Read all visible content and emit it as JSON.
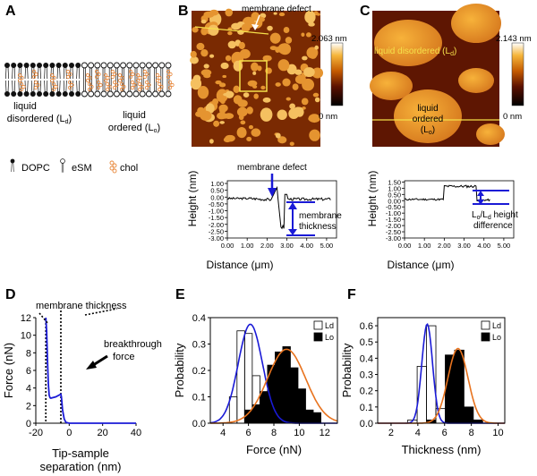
{
  "panels": {
    "A": {
      "letter": "A",
      "ld_label_1": "liquid",
      "ld_label_2": "disordered (L",
      "ld_sub": "d",
      "lo_label_1": "liquid",
      "lo_label_2": "ordered (L",
      "lo_sub": "o",
      "close_paren": ")",
      "legend": [
        "DOPC",
        "eSM",
        "chol"
      ],
      "colors": {
        "chol": "#e8873a",
        "lipid": "#111111"
      }
    },
    "B": {
      "letter": "B",
      "annotation": "membrane defect",
      "scale_max": "2.063 nm",
      "scale_min": "0 nm",
      "profile": {
        "ylabel": "Height (nm)",
        "xlabel": "Distance (μm)",
        "yticks": [
          "1.00",
          "0.50",
          "0.00",
          "-0.50",
          "-1.00",
          "-1.50",
          "-2.00",
          "-2.50",
          "-3.00"
        ],
        "xticks": [
          "0.00",
          "1.00",
          "2.00",
          "3.00",
          "4.00",
          "5.00"
        ],
        "defect_label": "membrane defect",
        "thickness_label_1": "membrane",
        "thickness_label_2": "thickness"
      }
    },
    "C": {
      "letter": "C",
      "scale_max": "2.143 nm",
      "scale_min": "0 nm",
      "ld_label": "liquid disordered (L",
      "ld_sub": "d",
      "lo_label_1": "liquid",
      "lo_label_2": "ordered",
      "lo_label_3": "(L",
      "lo_sub": "o",
      "close_paren": ")",
      "profile": {
        "ylabel": "Height (nm)",
        "xlabel": "Distance (μm)",
        "yticks": [
          "1.50",
          "1.00",
          "0.50",
          "0.00",
          "-0.50",
          "-1.00",
          "-1.50",
          "-2.00",
          "-2.50",
          "-3.00"
        ],
        "xticks": [
          "0.00",
          "1.00",
          "2.00",
          "3.00",
          "4.00",
          "5.00"
        ],
        "diff_label_1a": "L",
        "diff_sub_o": "o",
        "diff_label_1b": "/L",
        "diff_sub_d": "d",
        "diff_label_1c": " height",
        "diff_label_2": "difference"
      }
    },
    "D": {
      "letter": "D",
      "thickness_label": "membrane thickness",
      "breakthrough_1": "breakthrough",
      "breakthrough_2": "force"
    },
    "E": {
      "letter": "E"
    },
    "F": {
      "letter": "F"
    }
  },
  "chart_data": [
    {
      "id": "D",
      "type": "line",
      "title": "",
      "xlabel": "Tip-sample separation (nm)",
      "xlabel_1": "Tip-sample",
      "xlabel_2": "separation (nm)",
      "ylabel": "Force (nN)",
      "xlim": [
        -20,
        40
      ],
      "ylim": [
        0,
        12
      ],
      "xticks": [
        -20,
        0,
        20,
        40
      ],
      "yticks": [
        0,
        2,
        4,
        6,
        8,
        10,
        12
      ],
      "color": "#1a1ad6",
      "x": [
        -14,
        -13.5,
        -13,
        -12.5,
        -12,
        -11.5,
        -11,
        -10,
        -8,
        -6,
        -5,
        -4.7,
        -4,
        -3,
        -2,
        0,
        5,
        20,
        40
      ],
      "y": [
        12,
        10.5,
        7.0,
        4.5,
        3.2,
        2.9,
        2.85,
        2.9,
        3.0,
        3.2,
        3.3,
        3.0,
        1.5,
        0.5,
        0.1,
        0,
        0,
        0,
        0
      ]
    },
    {
      "id": "E",
      "type": "bar",
      "title": "",
      "xlabel": "Force (nN)",
      "ylabel": "Probability",
      "xlim": [
        3,
        13
      ],
      "ylim": [
        0,
        0.4
      ],
      "xticks": [
        4,
        6,
        8,
        10,
        12
      ],
      "yticks": [
        0.0,
        0.1,
        0.2,
        0.3,
        0.4
      ],
      "bin_width": 0.6,
      "legend": [
        "Ld",
        "Lo"
      ],
      "series": [
        {
          "name": "Ld",
          "fill": "#ffffff",
          "x": [
            4.8,
            5.4,
            6.0,
            6.6,
            7.2,
            7.8
          ],
          "values": [
            0.1,
            0.35,
            0.34,
            0.18,
            0.03,
            0.0
          ]
        },
        {
          "name": "Lo",
          "fill": "#000000",
          "x": [
            6.0,
            6.6,
            7.2,
            7.8,
            8.4,
            9.0,
            9.6,
            10.2,
            10.8,
            11.4
          ],
          "values": [
            0.05,
            0.07,
            0.12,
            0.22,
            0.27,
            0.29,
            0.21,
            0.13,
            0.05,
            0.04
          ]
        }
      ],
      "fits": [
        {
          "name": "Ld fit",
          "color": "#1a1ad6",
          "amp": 0.375,
          "mean": 6.15,
          "sd": 0.95
        },
        {
          "name": "Lo fit",
          "color": "#e8731e",
          "amp": 0.28,
          "mean": 9.0,
          "sd": 1.5
        }
      ]
    },
    {
      "id": "F",
      "type": "bar",
      "title": "",
      "xlabel": "Thickness (nm)",
      "ylabel": "Probability",
      "xlim": [
        1,
        10.5
      ],
      "ylim": [
        0,
        0.65
      ],
      "xticks": [
        2,
        4,
        6,
        8,
        10
      ],
      "yticks": [
        0.0,
        0.1,
        0.2,
        0.3,
        0.4,
        0.5,
        0.6
      ],
      "bin_width": 0.7,
      "legend": [
        "Ld",
        "Lo"
      ],
      "series": [
        {
          "name": "Ld",
          "fill": "#ffffff",
          "x": [
            3.6,
            4.3,
            5.0,
            5.7,
            6.4
          ],
          "values": [
            0.02,
            0.35,
            0.6,
            0.09,
            0.08
          ]
        },
        {
          "name": "Lo",
          "fill": "#000000",
          "x": [
            5.0,
            5.7,
            6.4,
            7.1,
            7.8,
            8.5
          ],
          "values": [
            0.02,
            0.0,
            0.42,
            0.45,
            0.1,
            0.02
          ]
        }
      ],
      "fits": [
        {
          "name": "Ld fit",
          "color": "#1a1ad6",
          "amp": 0.61,
          "mean": 4.7,
          "sd": 0.4
        },
        {
          "name": "Lo fit",
          "color": "#e8731e",
          "amp": 0.46,
          "mean": 7.0,
          "sd": 0.75
        }
      ]
    }
  ]
}
